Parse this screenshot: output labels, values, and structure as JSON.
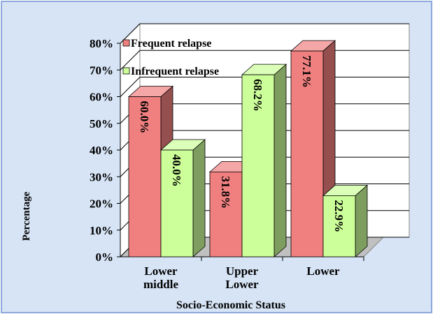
{
  "chart_data": {
    "type": "bar3d",
    "x_label": "Socio-Economic Status",
    "y_label": "Percentage",
    "categories": [
      "Lower middle",
      "Upper Lower",
      "Lower"
    ],
    "series": [
      {
        "name": "Frequent relapse",
        "color": "#f08080",
        "values": [
          60.0,
          31.8,
          77.1
        ],
        "value_labels": [
          "60.0%",
          "31.8%",
          "77.1%"
        ]
      },
      {
        "name": "Infrequent relapse",
        "color": "#ccff99",
        "values": [
          40.0,
          68.2,
          22.9
        ],
        "value_labels": [
          "40.0%",
          "68.2%",
          "22.9%"
        ]
      }
    ],
    "ylim": [
      0,
      80
    ],
    "yticks": [
      {
        "value": 0,
        "label": "0%"
      },
      {
        "value": 10,
        "label": "10%"
      },
      {
        "value": 20,
        "label": "20%"
      },
      {
        "value": 30,
        "label": "30%"
      },
      {
        "value": 40,
        "label": "40%"
      },
      {
        "value": 50,
        "label": "50%"
      },
      {
        "value": 60,
        "label": "60%"
      },
      {
        "value": 70,
        "label": "70%"
      },
      {
        "value": 80,
        "label": "80%"
      }
    ],
    "grid": true,
    "legend": "top-left"
  }
}
